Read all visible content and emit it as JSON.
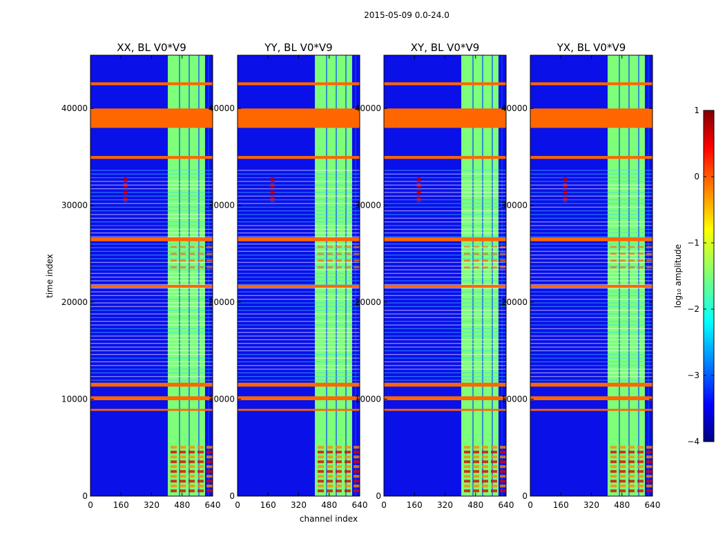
{
  "chart_data": {
    "type": "heatmap",
    "suptitle": "2015-05-09 0.0-24.0",
    "xlabel": "channel index",
    "ylabel": "time index",
    "xlim": [
      0,
      640
    ],
    "ylim": [
      0,
      45500
    ],
    "xticks": [
      0,
      160,
      320,
      480,
      640
    ],
    "yticks": [
      0,
      10000,
      20000,
      30000,
      40000
    ],
    "panels": [
      {
        "title": "XX, BL V0*V9"
      },
      {
        "title": "YY, BL V0*V9"
      },
      {
        "title": "XY, BL V0*V9"
      },
      {
        "title": "YX, BL V0*V9"
      }
    ],
    "colorbar": {
      "label": "log₁₀ amplitude",
      "range": [
        -4,
        1
      ],
      "ticks": [
        1,
        0,
        -1,
        -2,
        -3,
        -4
      ],
      "tick_labels": [
        "1",
        "0",
        "−1",
        "−2",
        "−3",
        "−4"
      ]
    },
    "flagged_time_bands": [
      [
        38000,
        40000
      ],
      [
        42400,
        42700
      ],
      [
        34800,
        35100
      ],
      [
        26300,
        26700
      ],
      [
        21500,
        21800
      ],
      [
        11300,
        11700
      ],
      [
        9900,
        10300
      ],
      [
        8800,
        9000
      ]
    ],
    "high_amplitude_channel_range": [
      405,
      600
    ],
    "colors": {
      "flagged": "#ff6600",
      "low": "#0a10e8",
      "mid": "#7dff7a",
      "high": "#e00000"
    }
  }
}
